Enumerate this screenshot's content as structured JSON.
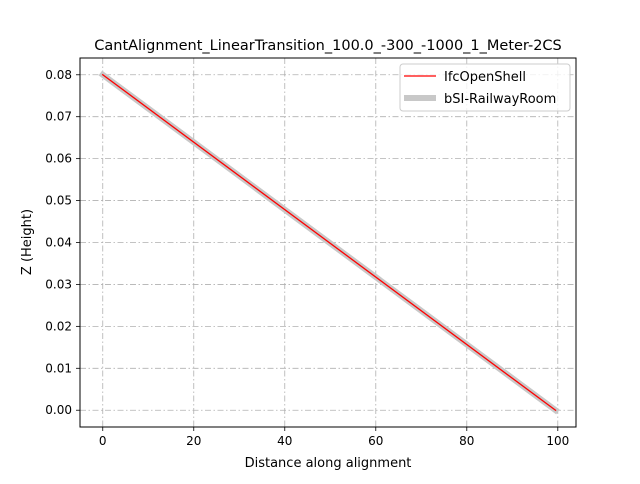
{
  "chart_data": {
    "type": "line",
    "title": "CantAlignment_LinearTransition_100.0_-300_-1000_1_Meter-2CS",
    "xlabel": "Distance along alignment",
    "ylabel": "Z (Height)",
    "xlim": [
      -5,
      104
    ],
    "ylim": [
      -0.004,
      0.084
    ],
    "xticks": [
      0,
      20,
      40,
      60,
      80,
      100
    ],
    "xtick_labels": [
      "0",
      "20",
      "40",
      "60",
      "80",
      "100"
    ],
    "yticks": [
      0.0,
      0.01,
      0.02,
      0.03,
      0.04,
      0.05,
      0.06,
      0.07,
      0.08
    ],
    "ytick_labels": [
      "0.00",
      "0.01",
      "0.02",
      "0.03",
      "0.04",
      "0.05",
      "0.06",
      "0.07",
      "0.08"
    ],
    "grid": true,
    "legend_position": "upper-right",
    "series": [
      {
        "name": "IfcOpenShell",
        "color": "#ff0000",
        "x": [
          0,
          99.5
        ],
        "y": [
          0.08,
          0.0
        ]
      },
      {
        "name": "bSI-RailwayRoom",
        "color": "#c8c8c8",
        "x": [
          0,
          99.5
        ],
        "y": [
          0.08,
          0.0
        ]
      }
    ]
  }
}
